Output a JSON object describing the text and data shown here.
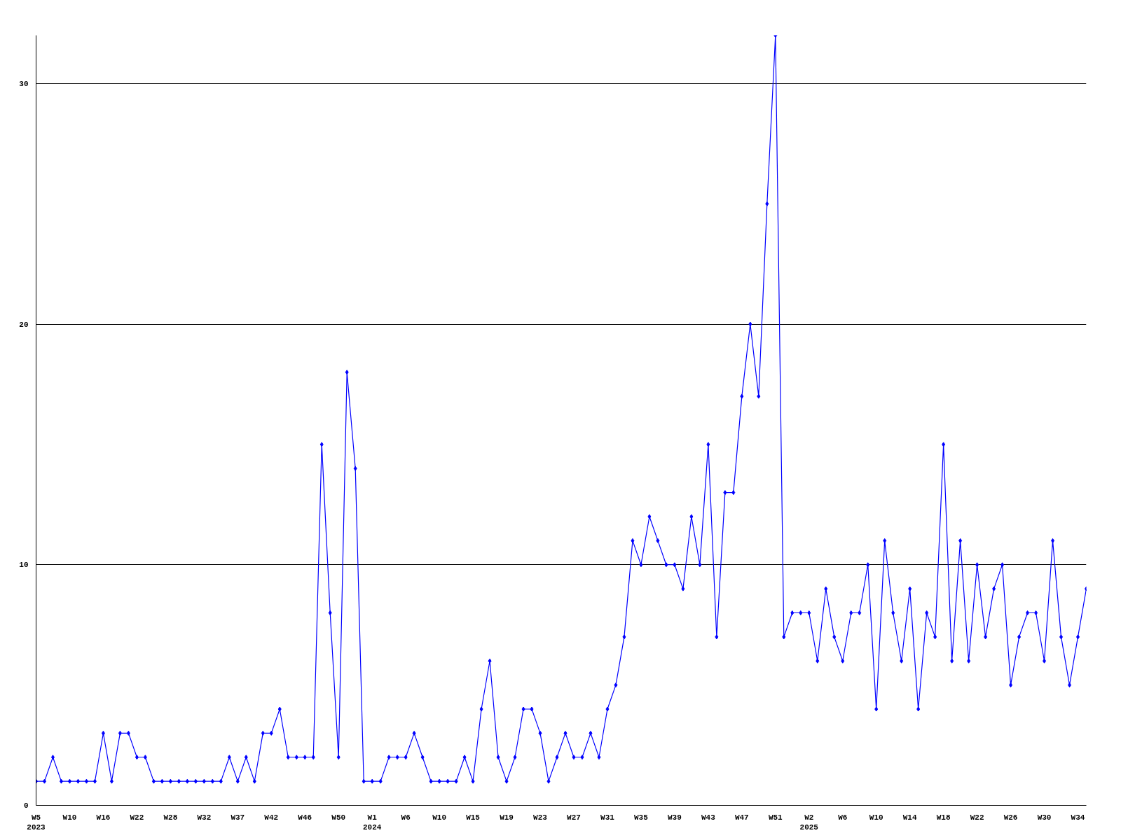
{
  "chart_data": {
    "type": "line",
    "categories": [
      "W5\n2023",
      null,
      null,
      null,
      "W10",
      null,
      null,
      null,
      "W16",
      null,
      null,
      null,
      "W22",
      null,
      null,
      null,
      "W28",
      null,
      null,
      null,
      "W32",
      null,
      null,
      null,
      "W37",
      null,
      null,
      null,
      "W42",
      null,
      null,
      null,
      "W46",
      null,
      null,
      null,
      "W50",
      null,
      null,
      null,
      "W1\n2024",
      null,
      null,
      null,
      "W6",
      null,
      null,
      null,
      "W10",
      null,
      null,
      null,
      "W15",
      null,
      null,
      null,
      "W19",
      null,
      null,
      null,
      "W23",
      null,
      null,
      null,
      "W27",
      null,
      null,
      null,
      "W31",
      null,
      null,
      null,
      "W35",
      null,
      null,
      null,
      "W39",
      null,
      null,
      null,
      "W43",
      null,
      null,
      null,
      "W47",
      null,
      null,
      null,
      "W51",
      null,
      null,
      null,
      "W2\n2025",
      null,
      null,
      null,
      "W6",
      null,
      null,
      null,
      "W10",
      null,
      null,
      null,
      "W14",
      null,
      null,
      null,
      "W18",
      null,
      null,
      null,
      "W22",
      null,
      null,
      null,
      "W26",
      null,
      null,
      null,
      "W30",
      null,
      null,
      null,
      "W34",
      null
    ],
    "values": [
      1,
      1,
      2,
      1,
      1,
      1,
      1,
      1,
      3,
      1,
      3,
      3,
      2,
      2,
      1,
      1,
      1,
      1,
      1,
      1,
      1,
      1,
      1,
      2,
      1,
      2,
      1,
      3,
      3,
      4,
      2,
      2,
      2,
      2,
      15,
      8,
      2,
      18,
      14,
      1,
      1,
      1,
      2,
      2,
      2,
      3,
      2,
      1,
      1,
      1,
      1,
      2,
      1,
      4,
      6,
      2,
      1,
      2,
      4,
      4,
      3,
      1,
      2,
      3,
      2,
      2,
      3,
      2,
      4,
      5,
      7,
      11,
      10,
      12,
      11,
      10,
      10,
      9,
      12,
      10,
      15,
      7,
      13,
      13,
      17,
      20,
      17,
      25,
      32,
      7,
      8,
      8,
      8,
      6,
      9,
      7,
      6,
      8,
      8,
      10,
      4,
      11,
      8,
      6,
      9,
      4,
      8,
      7,
      15,
      6,
      11,
      6,
      10,
      7,
      9,
      10,
      5,
      7,
      8,
      8,
      6,
      11,
      7,
      5,
      7,
      9
    ],
    "color": "#0000ff",
    "ylim": [
      0,
      32
    ],
    "yticks": [
      0,
      10,
      20,
      30
    ],
    "grid": "y",
    "marker": "diamond",
    "line_style": "solid"
  }
}
